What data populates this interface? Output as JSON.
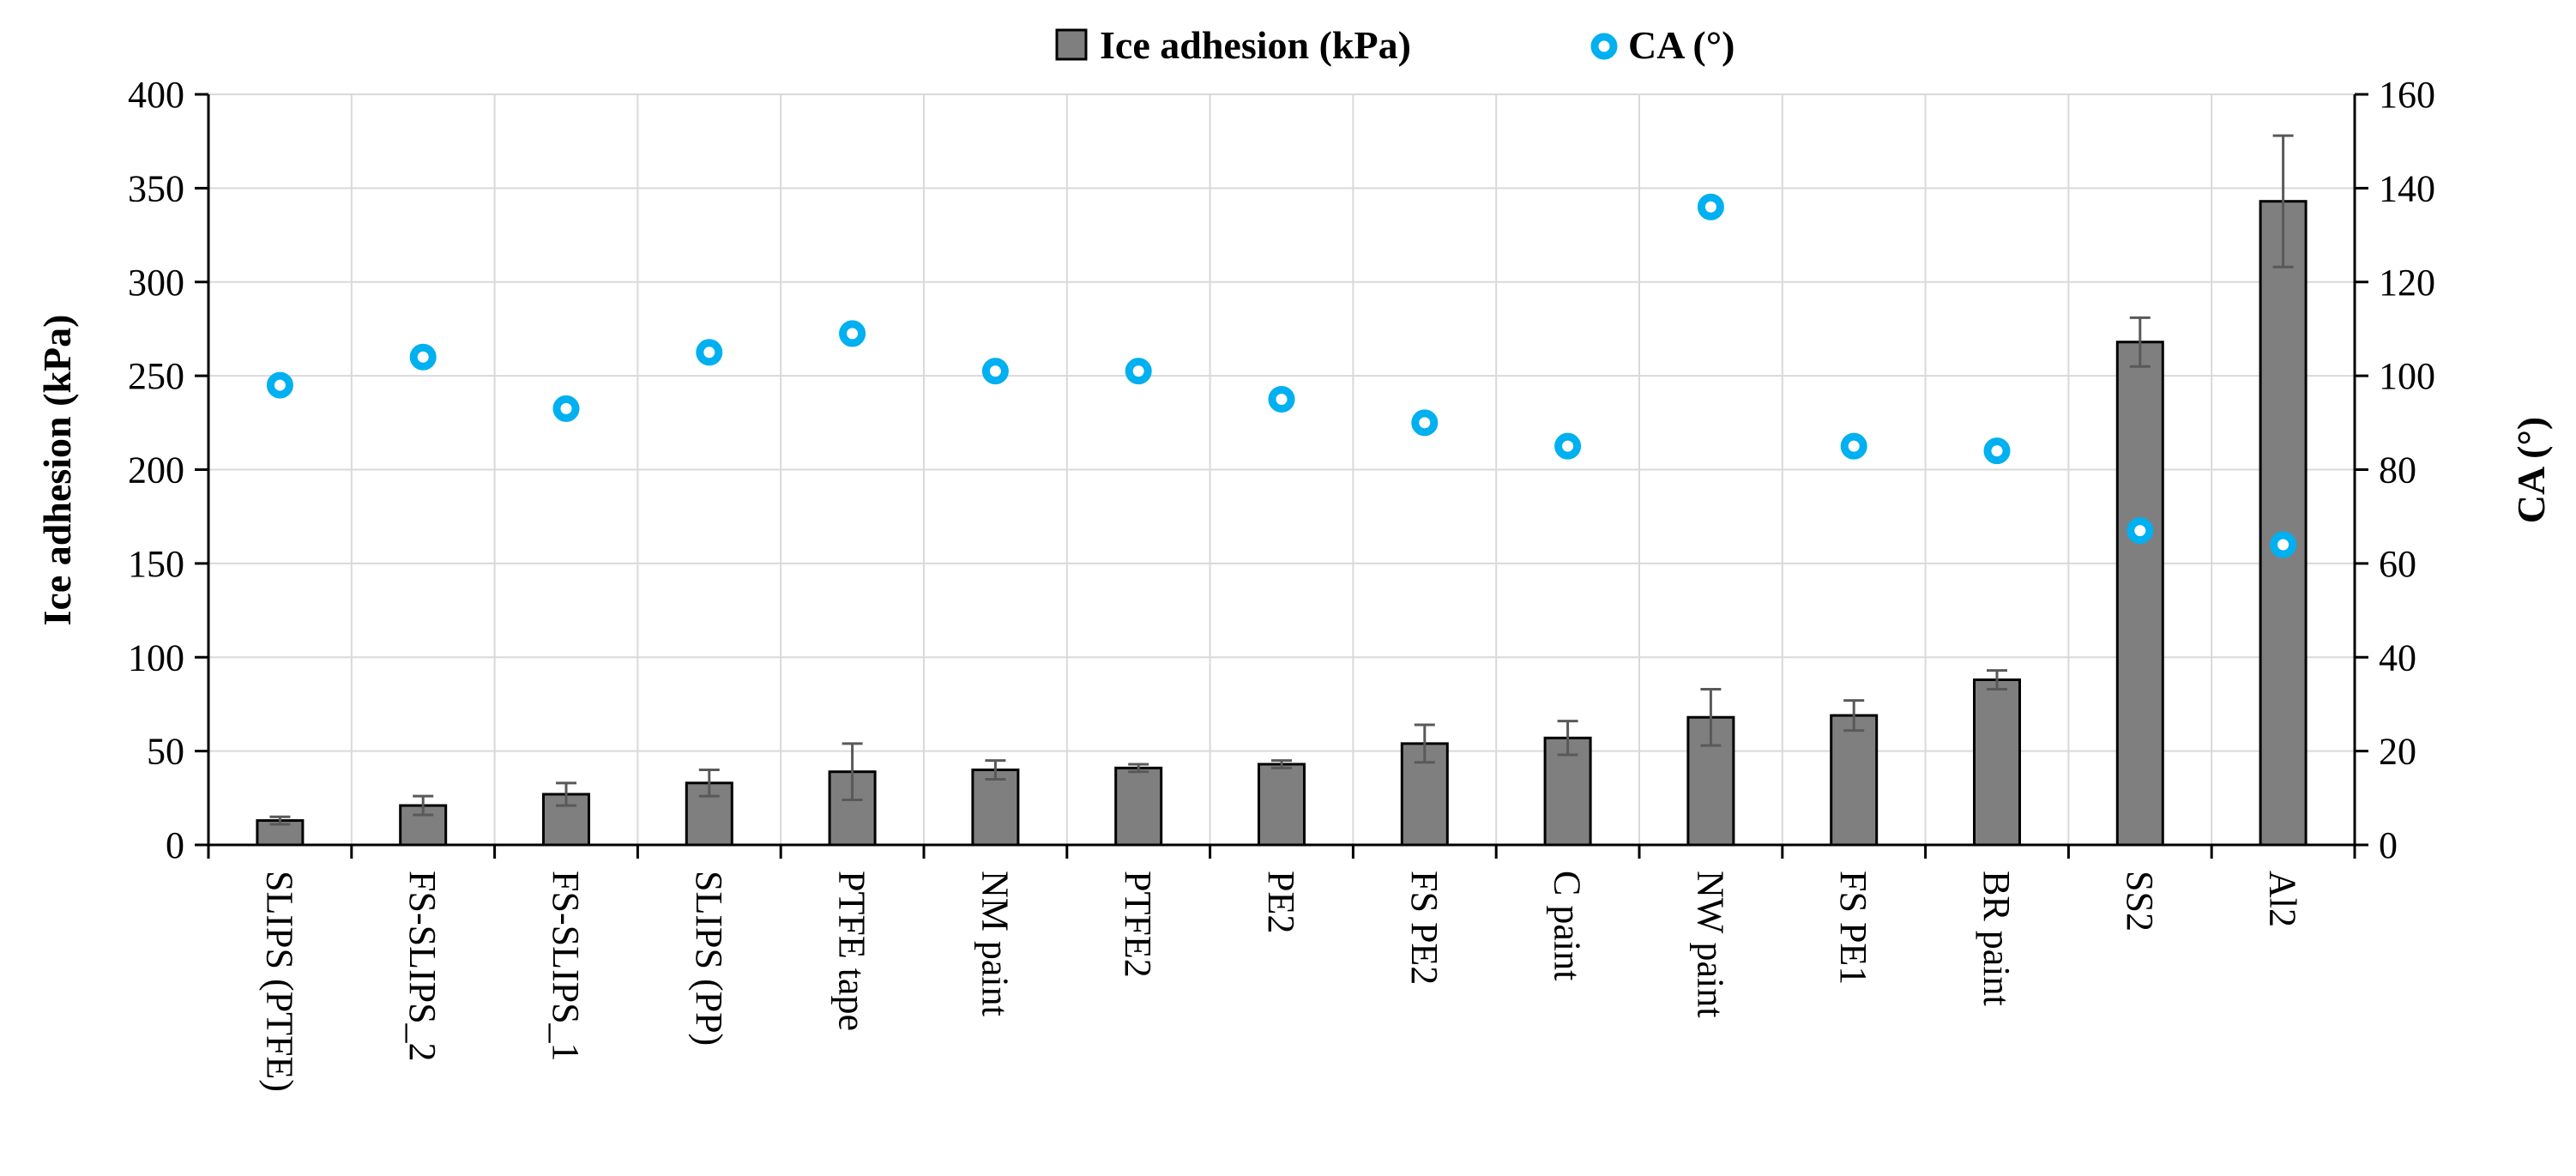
{
  "chart_data": {
    "type": "bar",
    "title": "",
    "categories": [
      "SLIPS (PTFE)",
      "FS-SLIPS_2",
      "FS-SLIPS_1",
      "SLIPS (PP)",
      "PTFE tape",
      "NM paint",
      "PTFE2",
      "PE2",
      "FS PE2",
      "C paint",
      "NW paint",
      "FS PE1",
      "BR paint",
      "SS2",
      "Al2"
    ],
    "series": [
      {
        "name": "Ice adhesion (kPa)",
        "type": "bar",
        "axis": "left",
        "color": "#7f7f7f",
        "values": [
          13,
          21,
          27,
          33,
          39,
          40,
          41,
          43,
          54,
          57,
          68,
          69,
          88,
          268,
          343
        ],
        "error": [
          2,
          5,
          6,
          7,
          15,
          5,
          2,
          2,
          10,
          9,
          15,
          8,
          5,
          13,
          35
        ]
      },
      {
        "name": "CA (°)",
        "type": "scatter",
        "axis": "right",
        "color": "#00b0f0",
        "values": [
          98,
          104,
          93,
          105,
          109,
          101,
          101,
          95,
          90,
          85,
          136,
          85,
          84,
          67,
          64
        ]
      }
    ],
    "ylabel": "Ice adhesion (kPa)",
    "y2label": "CA (°)",
    "ylim": [
      0,
      400
    ],
    "y2lim": [
      0,
      160
    ],
    "yticks": [
      "0",
      "50",
      "100",
      "150",
      "200",
      "250",
      "300",
      "350",
      "400"
    ],
    "y2ticks": [
      "0",
      "20",
      "40",
      "60",
      "80",
      "100",
      "120",
      "140",
      "160"
    ],
    "grid": true,
    "legend": "top-center"
  },
  "colors": {
    "bar_fill": "#7f7f7f",
    "bar_stroke": "#000000",
    "marker": "#00b0f0",
    "grid": "#d9d9d9",
    "error_bar": "#595959"
  }
}
